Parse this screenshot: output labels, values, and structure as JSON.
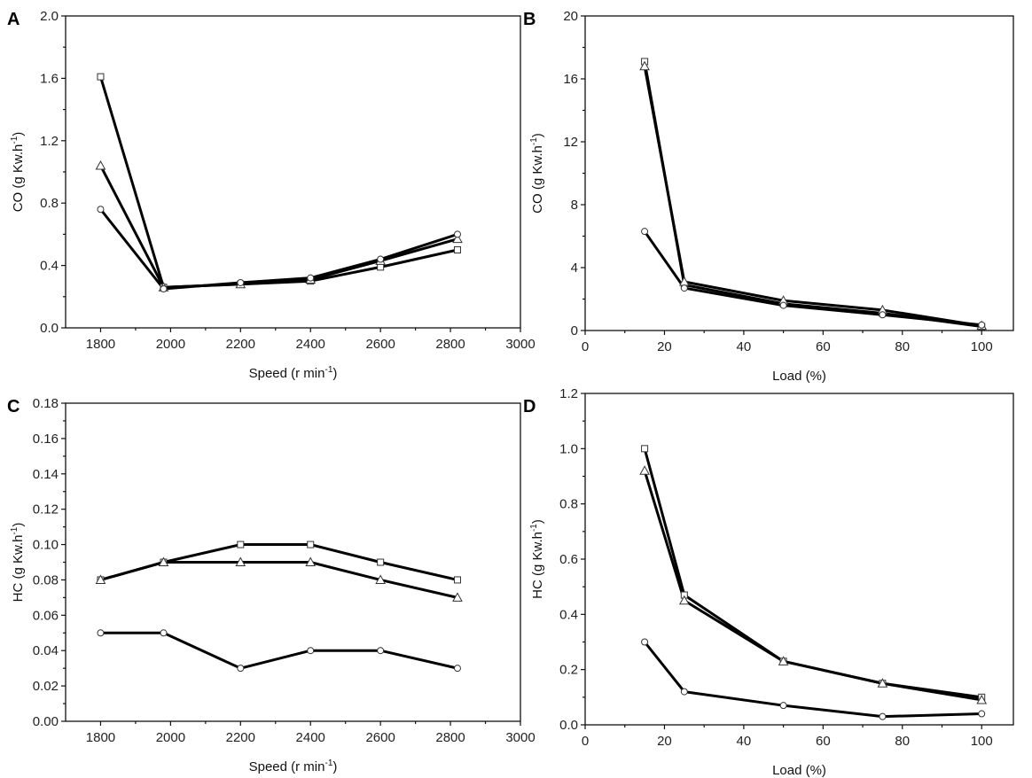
{
  "chart_data": [
    {
      "type": "line",
      "panel": "A",
      "xlabel": "Speed (r min",
      "xlabel_sup": "-1",
      "xlabel_end": ")",
      "ylabel": "CO (g Kw.h",
      "ylabel_sup": "-1",
      "ylabel_end": ")",
      "xlim": [
        1700,
        3000
      ],
      "ylim": [
        0.0,
        2.0
      ],
      "xticks": [
        1800,
        2000,
        2200,
        2400,
        2600,
        2800,
        3000
      ],
      "xtick_labels": [
        "1800",
        "2000",
        "2200",
        "2400",
        "2600",
        "2800",
        "3000"
      ],
      "yticks": [
        0.0,
        0.4,
        0.8,
        1.2,
        1.6,
        2.0
      ],
      "ytick_labels": [
        "0.0",
        "0.4",
        "0.8",
        "1.2",
        "1.6",
        "2.0"
      ],
      "x": [
        1800,
        1980,
        2200,
        2400,
        2600,
        2820
      ],
      "series": [
        {
          "name": "square",
          "marker": "square",
          "values": [
            1.61,
            0.26,
            0.28,
            0.3,
            0.39,
            0.5
          ]
        },
        {
          "name": "triangle",
          "marker": "triangle",
          "values": [
            1.04,
            0.26,
            0.28,
            0.31,
            0.43,
            0.57
          ]
        },
        {
          "name": "circle",
          "marker": "circle",
          "values": [
            0.76,
            0.25,
            0.29,
            0.32,
            0.44,
            0.6
          ]
        }
      ]
    },
    {
      "type": "line",
      "panel": "B",
      "xlabel": "Load (%)",
      "xlabel_sup": "",
      "xlabel_end": "",
      "ylabel": "CO (g Kw.h",
      "ylabel_sup": "-1",
      "ylabel_end": ")",
      "xlim": [
        0,
        108
      ],
      "ylim": [
        0,
        20
      ],
      "xticks": [
        0,
        20,
        40,
        60,
        80,
        100
      ],
      "xtick_labels": [
        "0",
        "20",
        "40",
        "60",
        "80",
        "100"
      ],
      "yticks": [
        0,
        4,
        8,
        12,
        16,
        20
      ],
      "ytick_labels": [
        "0",
        "4",
        "8",
        "12",
        "16",
        "20"
      ],
      "x": [
        15,
        25,
        50,
        75,
        100
      ],
      "series": [
        {
          "name": "square",
          "marker": "square",
          "values": [
            17.1,
            2.9,
            1.7,
            1.1,
            0.25
          ]
        },
        {
          "name": "triangle",
          "marker": "triangle",
          "values": [
            16.8,
            3.1,
            1.9,
            1.3,
            0.3
          ]
        },
        {
          "name": "circle",
          "marker": "circle",
          "values": [
            6.3,
            2.7,
            1.6,
            1.0,
            0.35
          ]
        }
      ]
    },
    {
      "type": "line",
      "panel": "C",
      "xlabel": "Speed (r min",
      "xlabel_sup": "-1",
      "xlabel_end": ")",
      "ylabel": "HC (g Kw.h",
      "ylabel_sup": "-1",
      "ylabel_end": ")",
      "xlim": [
        1700,
        3000
      ],
      "ylim": [
        0.0,
        0.18
      ],
      "xticks": [
        1800,
        2000,
        2200,
        2400,
        2600,
        2800,
        3000
      ],
      "xtick_labels": [
        "1800",
        "2000",
        "2200",
        "2400",
        "2600",
        "2800",
        "3000"
      ],
      "yticks": [
        0.0,
        0.02,
        0.04,
        0.06,
        0.08,
        0.1,
        0.12,
        0.14,
        0.16,
        0.18
      ],
      "ytick_labels": [
        "0.00",
        "0.02",
        "0.04",
        "0.06",
        "0.08",
        "0.10",
        "0.12",
        "0.14",
        "0.16",
        "0.18"
      ],
      "x": [
        1800,
        1980,
        2200,
        2400,
        2600,
        2820
      ],
      "series": [
        {
          "name": "square",
          "marker": "square",
          "values": [
            0.08,
            0.09,
            0.1,
            0.1,
            0.09,
            0.08
          ]
        },
        {
          "name": "triangle",
          "marker": "triangle",
          "values": [
            0.08,
            0.09,
            0.09,
            0.09,
            0.08,
            0.07
          ]
        },
        {
          "name": "circle",
          "marker": "circle",
          "values": [
            0.05,
            0.05,
            0.03,
            0.04,
            0.04,
            0.03
          ]
        }
      ]
    },
    {
      "type": "line",
      "panel": "D",
      "xlabel": "Load (%)",
      "xlabel_sup": "",
      "xlabel_end": "",
      "ylabel": "HC (g Kw.h",
      "ylabel_sup": "-1",
      "ylabel_end": ")",
      "xlim": [
        0,
        108
      ],
      "ylim": [
        0.0,
        1.2
      ],
      "xticks": [
        0,
        20,
        40,
        60,
        80,
        100
      ],
      "xtick_labels": [
        "0",
        "20",
        "40",
        "60",
        "80",
        "100"
      ],
      "yticks": [
        0.0,
        0.2,
        0.4,
        0.6,
        0.8,
        1.0,
        1.2
      ],
      "ytick_labels": [
        "0.0",
        "0.2",
        "0.4",
        "0.6",
        "0.8",
        "1.0",
        "1.2"
      ],
      "x": [
        15,
        25,
        50,
        75,
        100
      ],
      "series": [
        {
          "name": "square",
          "marker": "square",
          "values": [
            1.0,
            0.47,
            0.23,
            0.15,
            0.1
          ]
        },
        {
          "name": "triangle",
          "marker": "triangle",
          "values": [
            0.92,
            0.45,
            0.23,
            0.15,
            0.09
          ]
        },
        {
          "name": "circle",
          "marker": "circle",
          "values": [
            0.3,
            0.12,
            0.07,
            0.03,
            0.04
          ]
        }
      ]
    }
  ]
}
